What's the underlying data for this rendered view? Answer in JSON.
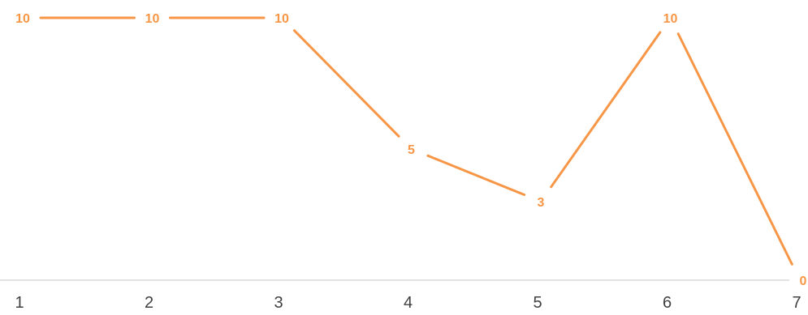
{
  "chart_data": {
    "type": "line",
    "title": "",
    "xlabel": "",
    "ylabel": "",
    "categories": [
      "1",
      "2",
      "3",
      "4",
      "5",
      "6",
      "7"
    ],
    "series": [
      {
        "values": [
          10,
          10,
          10,
          5,
          3,
          10,
          0
        ]
      }
    ],
    "ylim": [
      0,
      10
    ],
    "grid": false,
    "legend": "none",
    "data_labels": true,
    "colors": {
      "series": "#f79646",
      "axis": "#d9d9d9",
      "tick_text": "#404040"
    }
  }
}
